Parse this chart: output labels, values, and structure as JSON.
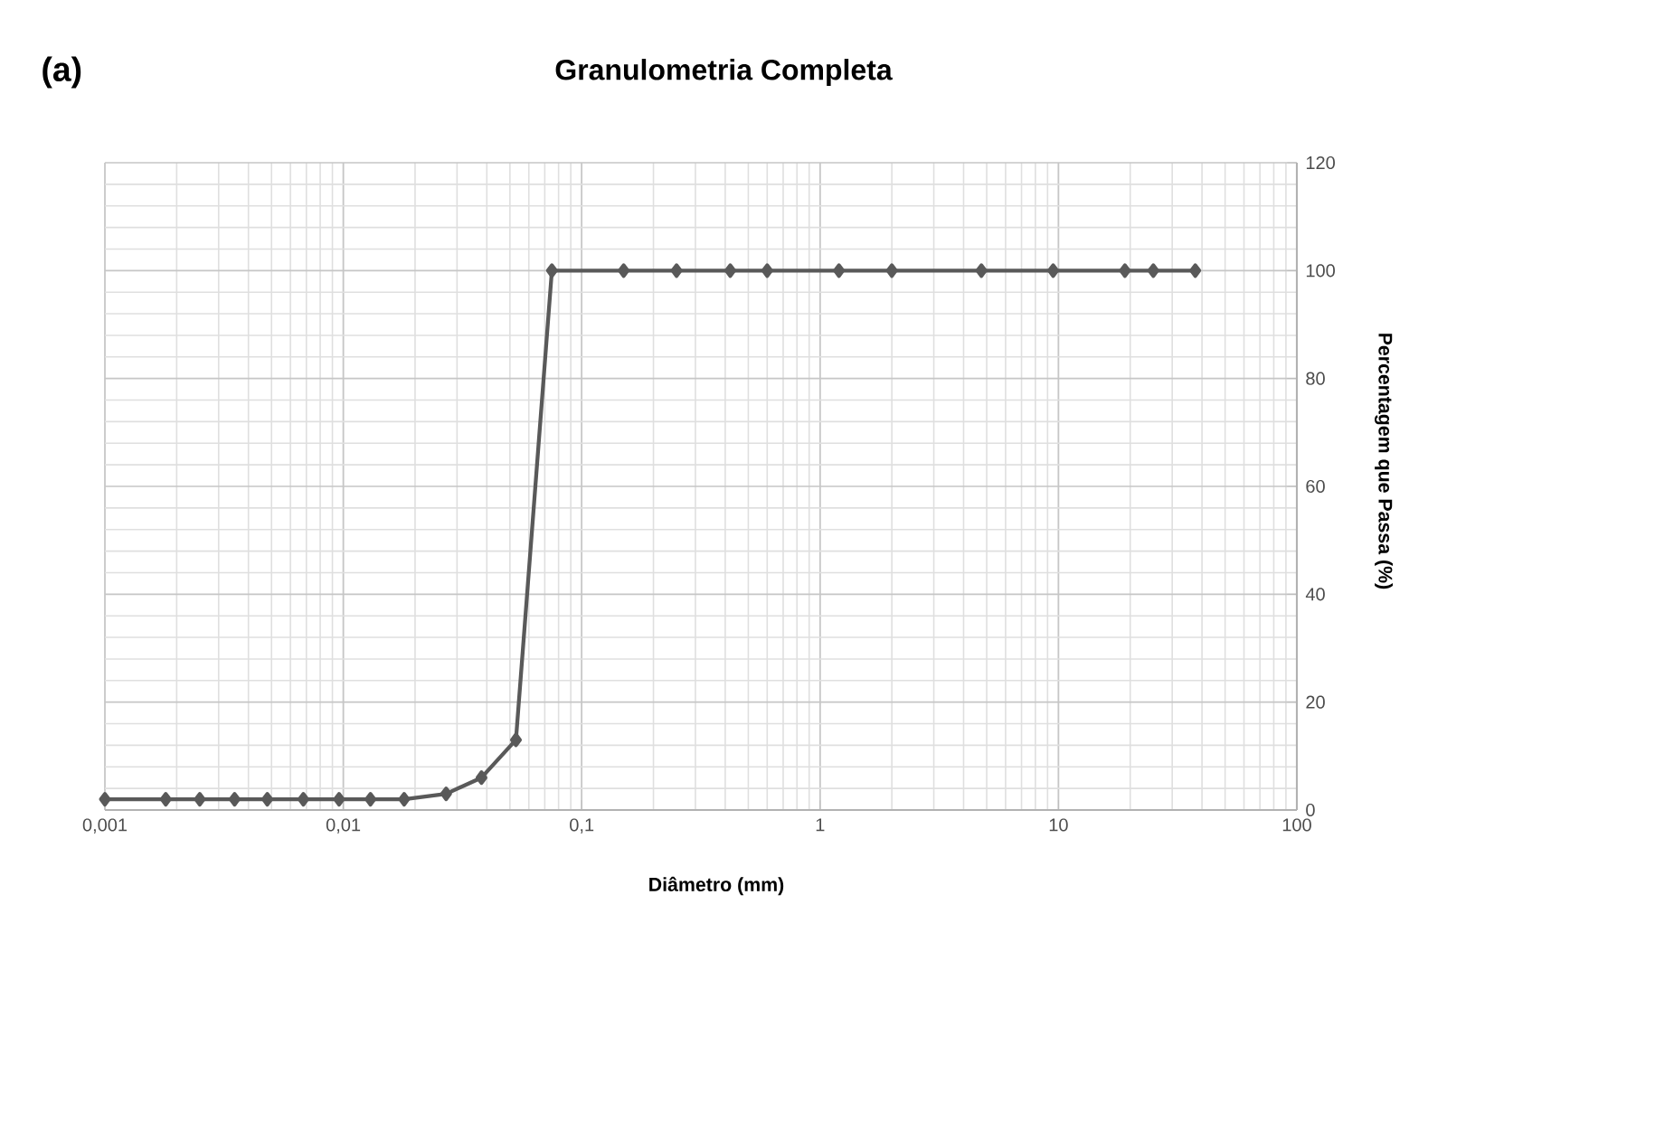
{
  "chart_data": {
    "type": "line",
    "title": "Granulometria Completa",
    "xlabel": "Diâmetro (mm)",
    "ylabel": "Percentagem que Passa (%)",
    "annotations": [
      "(a)"
    ],
    "log": "x",
    "grid": true,
    "marker": "diamond",
    "line_style": "solid",
    "x": [
      0.001,
      0.0018,
      0.0025,
      0.0035,
      0.0048,
      0.0068,
      0.0096,
      0.013,
      0.018,
      0.027,
      0.038,
      0.053,
      0.075,
      0.15,
      0.25,
      0.42,
      0.6,
      1.2,
      2.0,
      4.75,
      9.5,
      19,
      25,
      37.5
    ],
    "series": [
      {
        "color": "#595959",
        "values": [
          2,
          2,
          2,
          2,
          2,
          2,
          2,
          2,
          2,
          3,
          6,
          13,
          100,
          100,
          100,
          100,
          100,
          100,
          100,
          100,
          100,
          100,
          100,
          100
        ]
      }
    ],
    "xlim": [
      0.001,
      100
    ],
    "ylim": [
      0,
      120
    ],
    "xticks": [
      {
        "value": 0.001,
        "label": "0,001"
      },
      {
        "value": 0.01,
        "label": "0,01"
      },
      {
        "value": 0.1,
        "label": "0,1"
      },
      1,
      10,
      100
    ],
    "yticks": [
      0,
      20,
      40,
      60,
      80,
      100,
      120
    ]
  }
}
